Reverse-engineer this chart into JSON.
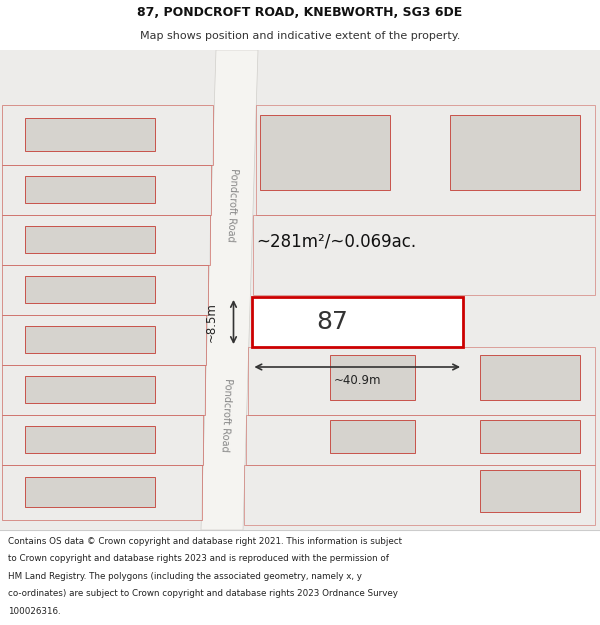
{
  "title": "87, PONDCROFT ROAD, KNEBWORTH, SG3 6DE",
  "subtitle": "Map shows position and indicative extent of the property.",
  "footer_lines": [
    "Contains OS data © Crown copyright and database right 2021. This information is subject",
    "to Crown copyright and database rights 2023 and is reproduced with the permission of",
    "HM Land Registry. The polygons (including the associated geometry, namely x, y",
    "co-ordinates) are subject to Crown copyright and database rights 2023 Ordnance Survey",
    "100026316."
  ],
  "map_bg": "#edecea",
  "road_fill": "#f5f4f1",
  "road_edge": "#d0ceca",
  "bldg_fill": "#d6d3ce",
  "bldg_edge": "#c8524a",
  "parcel_edge": "#c8524a",
  "parcel_fill": "#edecea",
  "plot_edge": "#cc0000",
  "plot_fill": "#ffffff",
  "area_text": "~281m²/~0.069ac.",
  "width_text": "~40.9m",
  "height_text": "~8.5m",
  "road_label": "Pondcroft Road",
  "plot_label": "87",
  "title_fs": 9,
  "subtitle_fs": 8,
  "footer_fs": 6.3
}
